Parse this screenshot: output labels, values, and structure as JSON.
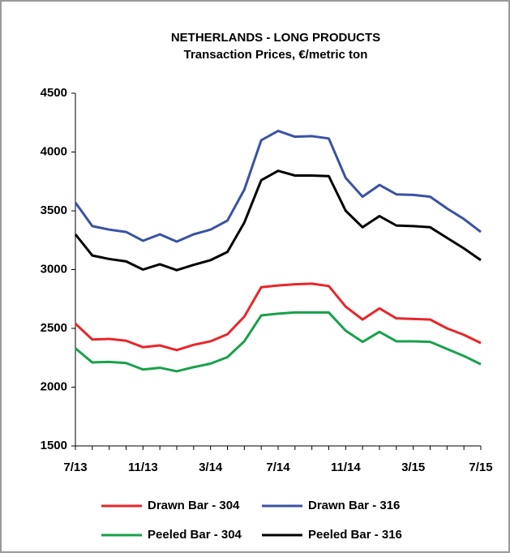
{
  "chart_data": {
    "type": "line",
    "title": "NETHERLANDS - LONG PRODUCTS",
    "subtitle": "Transaction Prices, €/metric ton",
    "categories": [
      "7/13",
      null,
      null,
      null,
      "11/13",
      null,
      null,
      null,
      "3/14",
      null,
      null,
      null,
      "7/14",
      null,
      null,
      null,
      "11/14",
      null,
      null,
      null,
      "3/15",
      null,
      null,
      null,
      "7/15"
    ],
    "series": [
      {
        "name": "Drawn Bar - 304",
        "color": "#e8262b",
        "values": [
          2540,
          2405,
          2410,
          2395,
          2340,
          2355,
          2315,
          2360,
          2390,
          2450,
          2600,
          2850,
          2865,
          2875,
          2880,
          2860,
          2685,
          2575,
          2670,
          2585,
          2580,
          2575,
          2500,
          2445,
          2375
        ]
      },
      {
        "name": "Drawn Bar - 316",
        "color": "#3a52a3",
        "values": [
          3570,
          3370,
          3340,
          3320,
          3245,
          3300,
          3238,
          3300,
          3340,
          3417,
          3680,
          4100,
          4180,
          4130,
          4135,
          4115,
          3780,
          3620,
          3720,
          3640,
          3635,
          3620,
          3520,
          3430,
          3320
        ]
      },
      {
        "name": "Peeled Bar - 304",
        "color": "#18a14a",
        "values": [
          2330,
          2210,
          2215,
          2205,
          2150,
          2165,
          2135,
          2170,
          2200,
          2255,
          2390,
          2610,
          2625,
          2635,
          2635,
          2635,
          2480,
          2385,
          2470,
          2390,
          2390,
          2385,
          2325,
          2265,
          2195
        ]
      },
      {
        "name": "Peeled Bar - 316",
        "color": "#000000",
        "values": [
          3300,
          3120,
          3090,
          3070,
          3000,
          3045,
          2995,
          3040,
          3080,
          3150,
          3400,
          3760,
          3840,
          3800,
          3800,
          3795,
          3500,
          3360,
          3455,
          3375,
          3370,
          3360,
          3270,
          3180,
          3080
        ]
      }
    ],
    "ylim": [
      1500,
      4500
    ],
    "yticks": [
      1500,
      2000,
      2500,
      3000,
      3500,
      4000,
      4500
    ]
  }
}
